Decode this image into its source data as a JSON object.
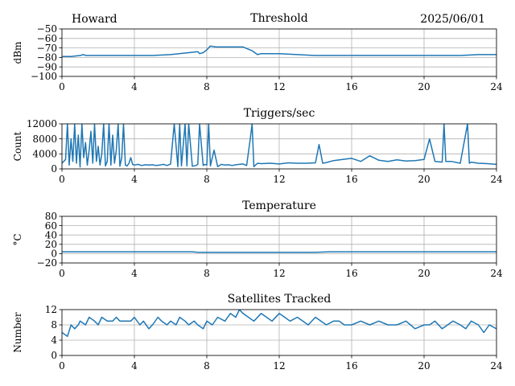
{
  "header": {
    "station": "Howard",
    "date": "2025/06/01"
  },
  "colors": {
    "series": "#1f77b4",
    "grid": "#b0b0b0"
  },
  "chart_data": [
    {
      "id": "threshold",
      "type": "line",
      "title": "Threshold",
      "ylabel": "dBm",
      "xlim": [
        0,
        24
      ],
      "ylim": [
        -100,
        -50
      ],
      "xticks": [
        "0",
        "4",
        "8",
        "12",
        "16",
        "20",
        "24"
      ],
      "xtick_values": [
        0,
        4,
        8,
        12,
        16,
        20,
        24
      ],
      "yticks": [
        "−100",
        "−90",
        "−80",
        "−70",
        "−60",
        "−50"
      ],
      "ytick_values": [
        -100,
        -90,
        -80,
        -70,
        -60,
        -50
      ],
      "grid": true,
      "x": [
        0,
        0.5,
        1,
        1.2,
        1.3,
        1.5,
        2,
        3,
        4,
        4.5,
        5,
        6,
        7,
        7.5,
        7.6,
        7.8,
        8,
        8.2,
        8.5,
        9,
        10,
        10.5,
        10.8,
        11,
        12,
        13,
        14,
        16,
        18,
        20,
        21,
        22,
        23,
        24
      ],
      "y": [
        -79,
        -79,
        -78,
        -77,
        -78,
        -78,
        -78,
        -78,
        -78,
        -78,
        -78,
        -77,
        -75,
        -74,
        -76,
        -75,
        -72,
        -68,
        -69,
        -69,
        -69,
        -73,
        -77,
        -76,
        -76,
        -77,
        -78,
        -78,
        -78,
        -78,
        -78,
        -78,
        -77,
        -77
      ]
    },
    {
      "id": "triggers",
      "type": "line",
      "title": "Triggers/sec",
      "ylabel": "Count",
      "xlim": [
        0,
        24
      ],
      "ylim": [
        0,
        12000
      ],
      "xticks": [
        "0",
        "4",
        "8",
        "12",
        "16",
        "20",
        "24"
      ],
      "xtick_values": [
        0,
        4,
        8,
        12,
        16,
        20,
        24
      ],
      "yticks": [
        "0",
        "4000",
        "8000",
        "12000"
      ],
      "ytick_values": [
        0,
        4000,
        8000,
        12000
      ],
      "grid": true,
      "x": [
        0,
        0.2,
        0.3,
        0.4,
        0.5,
        0.6,
        0.7,
        0.8,
        0.9,
        1.0,
        1.1,
        1.2,
        1.3,
        1.4,
        1.5,
        1.6,
        1.7,
        1.8,
        1.9,
        2.0,
        2.1,
        2.2,
        2.3,
        2.4,
        2.5,
        2.6,
        2.7,
        2.8,
        2.9,
        3.0,
        3.1,
        3.2,
        3.3,
        3.4,
        3.5,
        3.6,
        3.7,
        3.8,
        3.9,
        4.0,
        4.2,
        4.4,
        4.6,
        4.8,
        5.0,
        5.2,
        5.4,
        5.6,
        5.8,
        6.0,
        6.2,
        6.4,
        6.5,
        6.6,
        6.8,
        6.9,
        7.0,
        7.2,
        7.4,
        7.5,
        7.6,
        7.8,
        7.9,
        8.0,
        8.1,
        8.2,
        8.4,
        8.6,
        8.8,
        9.0,
        9.2,
        9.4,
        9.6,
        9.8,
        10.0,
        10.2,
        10.4,
        10.5,
        10.6,
        10.8,
        11.0,
        11.5,
        12.0,
        12.5,
        13.0,
        13.5,
        14.0,
        14.2,
        14.4,
        14.6,
        15.0,
        15.5,
        16.0,
        16.5,
        17.0,
        17.5,
        18.0,
        18.5,
        19.0,
        19.5,
        20.0,
        20.3,
        20.6,
        21.0,
        21.1,
        21.2,
        21.5,
        22.0,
        22.4,
        22.5,
        22.6,
        23.0,
        23.5,
        24.0
      ],
      "y": [
        1500,
        2500,
        12000,
        1000,
        8000,
        2000,
        12000,
        1500,
        9000,
        500,
        12000,
        3000,
        7000,
        1000,
        5000,
        10000,
        1500,
        12000,
        2000,
        6000,
        1000,
        4000,
        12000,
        800,
        2000,
        12000,
        1000,
        9000,
        1500,
        5000,
        12000,
        700,
        3000,
        12000,
        1000,
        800,
        1500,
        3000,
        1200,
        1000,
        1200,
        900,
        1100,
        1000,
        1100,
        900,
        1000,
        1200,
        900,
        1300,
        12000,
        600,
        12000,
        800,
        12000,
        800,
        12000,
        700,
        900,
        1200,
        12000,
        900,
        1200,
        1000,
        12000,
        800,
        5000,
        600,
        1200,
        1000,
        1100,
        900,
        1100,
        1200,
        1300,
        900,
        8000,
        12000,
        600,
        1500,
        1400,
        1500,
        1300,
        1600,
        1500,
        1500,
        1600,
        6500,
        1500,
        1700,
        2200,
        2500,
        2800,
        2000,
        3500,
        2300,
        2000,
        2400,
        2100,
        2200,
        2500,
        8000,
        2000,
        1800,
        12000,
        2000,
        2000,
        1500,
        12000,
        1500,
        1800,
        1500,
        1400,
        1200
      ]
    },
    {
      "id": "temperature",
      "type": "line",
      "title": "Temperature",
      "ylabel": "°C",
      "xlim": [
        0,
        24
      ],
      "ylim": [
        -20,
        80
      ],
      "xticks": [
        "0",
        "4",
        "8",
        "12",
        "16",
        "20",
        "24"
      ],
      "xtick_values": [
        0,
        4,
        8,
        12,
        16,
        20,
        24
      ],
      "yticks": [
        "−20",
        "0",
        "20",
        "40",
        "60",
        "80"
      ],
      "ytick_values": [
        -20,
        0,
        20,
        40,
        60,
        80
      ],
      "grid": true,
      "x": [
        0,
        2,
        4,
        6,
        7.2,
        7.5,
        8,
        10,
        12,
        14,
        14.8,
        16,
        18,
        20,
        22,
        24
      ],
      "y": [
        4,
        4,
        4,
        4,
        4,
        3,
        3,
        3,
        3,
        3,
        4,
        4,
        4,
        4,
        4,
        4
      ]
    },
    {
      "id": "satellites",
      "type": "line",
      "title": "Satellites Tracked",
      "ylabel": "Number",
      "xlim": [
        0,
        24
      ],
      "ylim": [
        0,
        12
      ],
      "xticks": [
        "0",
        "4",
        "8",
        "12",
        "16",
        "20",
        "24"
      ],
      "xtick_values": [
        0,
        4,
        8,
        12,
        16,
        20,
        24
      ],
      "yticks": [
        "0",
        "4",
        "8",
        "12"
      ],
      "ytick_values": [
        0,
        4,
        8,
        12
      ],
      "grid": true,
      "x": [
        0,
        0.3,
        0.5,
        0.7,
        0.9,
        1.0,
        1.3,
        1.5,
        1.8,
        2.0,
        2.2,
        2.5,
        2.8,
        3.0,
        3.2,
        3.5,
        3.8,
        4.0,
        4.3,
        4.5,
        4.8,
        5.0,
        5.3,
        5.5,
        5.8,
        6.0,
        6.3,
        6.5,
        6.8,
        7.0,
        7.3,
        7.5,
        7.8,
        8.0,
        8.3,
        8.6,
        9.0,
        9.3,
        9.6,
        9.8,
        10.0,
        10.3,
        10.6,
        11.0,
        11.3,
        11.6,
        12.0,
        12.3,
        12.6,
        13.0,
        13.3,
        13.6,
        14.0,
        14.3,
        14.6,
        15.0,
        15.3,
        15.6,
        16.0,
        16.5,
        17.0,
        17.5,
        18.0,
        18.5,
        19.0,
        19.5,
        20.0,
        20.3,
        20.6,
        21.0,
        21.3,
        21.6,
        22.0,
        22.3,
        22.6,
        23.0,
        23.3,
        23.6,
        24.0
      ],
      "y": [
        6,
        5,
        8,
        7,
        8,
        9,
        8,
        10,
        9,
        8,
        10,
        9,
        9,
        10,
        9,
        9,
        9,
        10,
        8,
        9,
        7,
        8,
        10,
        9,
        8,
        9,
        8,
        10,
        9,
        8,
        9,
        8,
        7,
        9,
        8,
        10,
        9,
        11,
        10,
        12,
        11,
        10,
        9,
        11,
        10,
        9,
        11,
        10,
        9,
        10,
        9,
        8,
        10,
        9,
        8,
        9,
        9,
        8,
        8,
        9,
        8,
        9,
        8,
        8,
        9,
        7,
        8,
        8,
        9,
        7,
        8,
        9,
        8,
        7,
        9,
        8,
        6,
        8,
        7
      ]
    }
  ]
}
